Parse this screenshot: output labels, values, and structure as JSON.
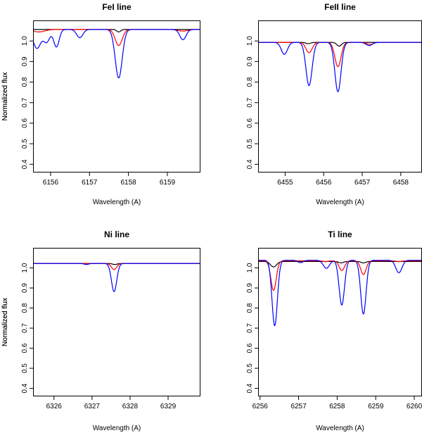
{
  "chart_data": [
    {
      "type": "line",
      "title": "FeI line",
      "xlabel": "Wavelength (A)",
      "ylabel": "Normalized flux",
      "xlim": [
        6155.55,
        6159.85
      ],
      "ylim": [
        0.36,
        1.1
      ],
      "xticks": [
        "6156",
        "6157",
        "6158",
        "6159"
      ],
      "yticks": [
        "0.4",
        "0.5",
        "0.6",
        "0.7",
        "0.8",
        "0.9",
        "1.0"
      ],
      "continuum": {
        "black": 1.056,
        "red": 1.056,
        "blue": 1.056
      },
      "series": [
        {
          "name": "black",
          "color": "#000000",
          "lines": [
            [
              6157.75,
              0.012,
              0.05
            ]
          ]
        },
        {
          "name": "red",
          "color": "#ff0000",
          "lines": [
            [
              6157.75,
              0.078,
              0.09
            ],
            [
              6155.7,
              0.012,
              0.15
            ],
            [
              6159.4,
              0.008,
              0.12
            ]
          ]
        },
        {
          "name": "blue",
          "color": "#0000ff",
          "lines": [
            [
              6157.75,
              0.236,
              0.09
            ],
            [
              6155.65,
              0.092,
              0.1
            ],
            [
              6155.9,
              0.06,
              0.08
            ],
            [
              6156.15,
              0.085,
              0.07
            ],
            [
              6156.75,
              0.04,
              0.08
            ],
            [
              6159.4,
              0.05,
              0.08
            ]
          ]
        }
      ]
    },
    {
      "type": "line",
      "title": "FeII line",
      "xlabel": "Wavelength (A)",
      "ylabel": "Normalized flux",
      "xlim": [
        6454.3,
        6458.55
      ],
      "ylim": [
        0.36,
        1.1
      ],
      "xticks": [
        "6455",
        "6456",
        "6457",
        "6458"
      ],
      "yticks": [
        "0.4",
        "0.5",
        "0.6",
        "0.7",
        "0.8",
        "0.9",
        "1.0"
      ],
      "continuum": {
        "black": 0.993,
        "red": 0.993,
        "blue": 0.993
      },
      "series": [
        {
          "name": "black",
          "color": "#000000",
          "lines": [
            [
              6456.4,
              0.018,
              0.06
            ],
            [
              6455.6,
              0.006,
              0.06
            ]
          ]
        },
        {
          "name": "red",
          "color": "#ff0000",
          "lines": [
            [
              6456.37,
              0.118,
              0.08
            ],
            [
              6455.62,
              0.05,
              0.08
            ],
            [
              6457.2,
              0.01,
              0.08
            ]
          ]
        },
        {
          "name": "blue",
          "color": "#0000ff",
          "lines": [
            [
              6456.37,
              0.24,
              0.08
            ],
            [
              6455.62,
              0.21,
              0.08
            ],
            [
              6454.98,
              0.058,
              0.08
            ],
            [
              6457.18,
              0.015,
              0.08
            ]
          ]
        }
      ]
    },
    {
      "type": "line",
      "title": "Ni line",
      "xlabel": "Wavelength (A)",
      "ylabel": "Normalized flux",
      "xlim": [
        6325.45,
        6329.85
      ],
      "ylim": [
        0.36,
        1.1
      ],
      "xticks": [
        "6326",
        "6327",
        "6328",
        "6329"
      ],
      "yticks": [
        "0.4",
        "0.5",
        "0.6",
        "0.7",
        "0.8",
        "0.9",
        "1.0"
      ],
      "continuum": {
        "black": 1.022,
        "red": 1.022,
        "blue": 1.022
      },
      "series": [
        {
          "name": "black",
          "color": "#000000",
          "lines": [
            [
              6327.6,
              0.005,
              0.06
            ]
          ]
        },
        {
          "name": "red",
          "color": "#ff0000",
          "lines": [
            [
              6327.58,
              0.03,
              0.07
            ]
          ]
        },
        {
          "name": "blue",
          "color": "#0000ff",
          "lines": [
            [
              6327.58,
              0.14,
              0.07
            ],
            [
              6326.85,
              0.005,
              0.06
            ]
          ]
        }
      ]
    },
    {
      "type": "line",
      "title": "Ti line",
      "xlabel": "Wavelength (A)",
      "ylabel": "Normalized flux",
      "xlim": [
        6255.95,
        6260.2
      ],
      "ylim": [
        0.36,
        1.1
      ],
      "xticks": [
        "6256",
        "6257",
        "6258",
        "6259",
        "6260"
      ],
      "yticks": [
        "0.4",
        "0.5",
        "0.6",
        "0.7",
        "0.8",
        "0.9",
        "1.0"
      ],
      "continuum": {
        "black": 1.032,
        "red": 1.035,
        "blue": 1.038
      },
      "series": [
        {
          "name": "black",
          "color": "#000000",
          "lines": [
            [
              6256.35,
              0.027,
              0.08
            ],
            [
              6258.1,
              0.007,
              0.06
            ],
            [
              6258.68,
              0.007,
              0.06
            ]
          ]
        },
        {
          "name": "red",
          "color": "#ff0000",
          "lines": [
            [
              6256.35,
              0.147,
              0.07
            ],
            [
              6258.12,
              0.048,
              0.07
            ],
            [
              6258.68,
              0.068,
              0.07
            ],
            [
              6257.7,
              0.004,
              0.06
            ],
            [
              6259.6,
              0.004,
              0.06
            ]
          ]
        },
        {
          "name": "blue",
          "color": "#0000ff",
          "lines": [
            [
              6256.38,
              0.326,
              0.07
            ],
            [
              6258.12,
              0.223,
              0.07
            ],
            [
              6258.68,
              0.268,
              0.07
            ],
            [
              6257.72,
              0.04,
              0.08
            ],
            [
              6259.6,
              0.062,
              0.08
            ],
            [
              6257.05,
              0.012,
              0.07
            ]
          ]
        }
      ]
    }
  ]
}
